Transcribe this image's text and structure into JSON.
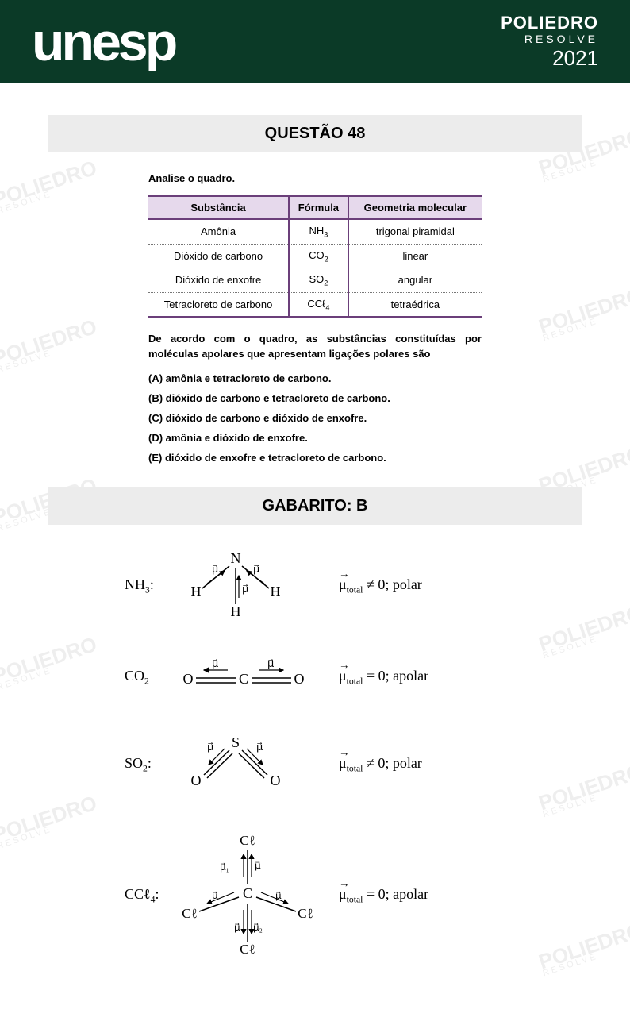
{
  "header": {
    "logo": "unesp",
    "brand_top": "POLIEDRO",
    "brand_sub": "RESOLVE",
    "year": "2021",
    "bg_color": "#0b3a27",
    "fg_color": "#ffffff"
  },
  "question": {
    "title": "QUESTÃO 48",
    "intro": "Analise o quadro.",
    "table": {
      "columns": [
        "Substância",
        "Fórmula",
        "Geometria molecular"
      ],
      "rows": [
        {
          "name": "Amônia",
          "formula_base": "NH",
          "formula_sub": "3",
          "geom": "trigonal piramidal"
        },
        {
          "name": "Dióxido de carbono",
          "formula_base": "CO",
          "formula_sub": "2",
          "geom": "linear"
        },
        {
          "name": "Dióxido de enxofre",
          "formula_base": "SO",
          "formula_sub": "2",
          "geom": "angular"
        },
        {
          "name": "Tetracloreto de carbono",
          "formula_base": "CCℓ",
          "formula_sub": "4",
          "geom": "tetraédrica"
        }
      ],
      "header_bg": "#e6d9ec",
      "border_color": "#6b3f7a"
    },
    "stem": "De acordo com o quadro, as substâncias constituídas por moléculas apolares que apresentam ligações polares são",
    "options": [
      {
        "letter": "(A)",
        "text": "amônia e tetracloreto de carbono."
      },
      {
        "letter": "(B)",
        "text": "dióxido de carbono e tetracloreto de carbono."
      },
      {
        "letter": "(C)",
        "text": "dióxido de carbono e dióxido de enxofre."
      },
      {
        "letter": "(D)",
        "text": "amônia e dióxido de enxofre."
      },
      {
        "letter": "(E)",
        "text": "dióxido de enxofre e tetracloreto de carbono."
      }
    ]
  },
  "answer": {
    "title": "GABARITO: B",
    "molecules": [
      {
        "label_base": "NH",
        "label_sub": "3",
        "label_suffix": ":",
        "result_neq": true,
        "polarity": "polar"
      },
      {
        "label_base": "CO",
        "label_sub": "2",
        "label_suffix": "",
        "result_neq": false,
        "polarity": "apolar"
      },
      {
        "label_base": "SO",
        "label_sub": "2",
        "label_suffix": ":",
        "result_neq": true,
        "polarity": "polar"
      },
      {
        "label_base": "CCℓ",
        "label_sub": "4",
        "label_suffix": ":",
        "result_neq": false,
        "polarity": "apolar"
      }
    ],
    "mu_symbol": "μ",
    "mu_sub": "total"
  },
  "watermark_text": "POLIEDRO",
  "watermark_sub": "RESOLVE"
}
